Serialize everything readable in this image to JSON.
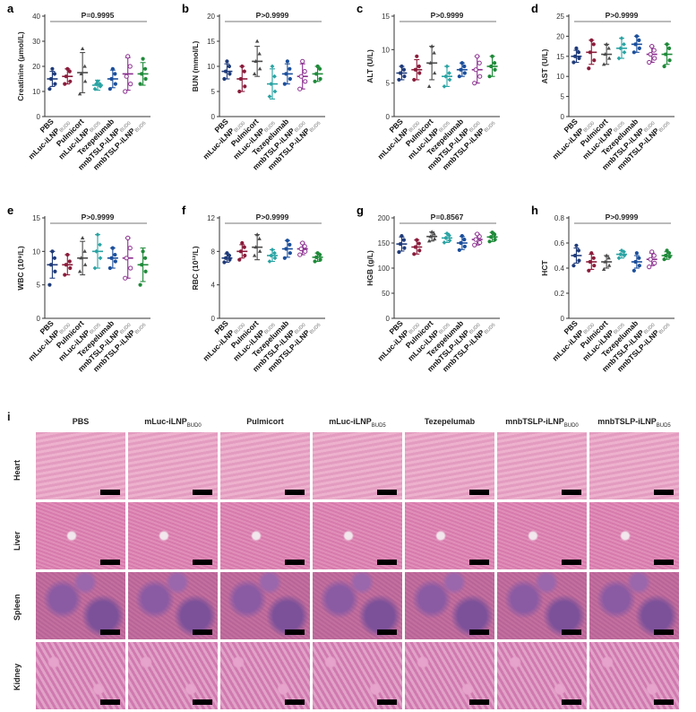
{
  "chart_data": [
    {
      "panel": "a",
      "type": "scatter",
      "ylabel": "Creatinine (μmol/L)",
      "ylim": [
        0,
        40
      ],
      "yticks": [
        0,
        10,
        20,
        30,
        40
      ],
      "pvalue": "P=0.9995",
      "categories": [
        "PBS",
        "mLuc-iLNP",
        "Pulmicort",
        "mLuc-iLNP",
        "Tezepelumab",
        "mnbTSLP-iLNP",
        "mnbTSLP-iLNP"
      ],
      "subscripts": [
        "",
        "BUD0",
        "",
        "BUD5",
        "",
        "BUD0",
        "BUD5"
      ],
      "means": [
        15,
        16,
        17.5,
        12.5,
        15,
        17,
        17
      ],
      "sd": [
        3,
        3,
        8,
        2,
        3.5,
        6.5,
        4.5
      ],
      "points": [
        [
          11,
          13,
          15,
          17,
          19
        ],
        [
          13,
          14,
          16,
          18,
          19
        ],
        [
          9,
          14,
          17,
          20,
          27
        ],
        [
          11,
          12,
          13,
          13,
          14
        ],
        [
          11,
          13,
          15,
          17,
          19
        ],
        [
          10,
          13,
          16,
          20,
          24
        ],
        [
          13,
          15,
          17,
          19,
          23
        ]
      ]
    },
    {
      "panel": "b",
      "type": "scatter",
      "ylabel": "BUN (mmol/L)",
      "ylim": [
        0,
        20
      ],
      "yticks": [
        0,
        5,
        10,
        15,
        20
      ],
      "pvalue": "P>0.9999",
      "categories": [
        "PBS",
        "mLuc-iLNP",
        "Pulmicort",
        "mLuc-iLNP",
        "Tezepelumab",
        "mnbTSLP-iLNP",
        "mnbTSLP-iLNP"
      ],
      "subscripts": [
        "",
        "BUD0",
        "",
        "BUD5",
        "",
        "BUD0",
        "BUD5"
      ],
      "means": [
        9,
        7.5,
        11,
        6.5,
        8.5,
        8,
        8.5
      ],
      "sd": [
        1.5,
        2.5,
        3,
        3,
        2,
        2.5,
        1.5
      ],
      "points": [
        [
          7.5,
          8.5,
          9,
          10,
          11
        ],
        [
          5,
          6,
          7.5,
          9,
          10
        ],
        [
          8.5,
          9.5,
          11,
          12.5,
          15
        ],
        [
          4,
          5,
          6.5,
          8,
          10
        ],
        [
          6.5,
          7.5,
          8.5,
          9.5,
          11
        ],
        [
          5.5,
          7,
          8,
          9,
          11
        ],
        [
          7,
          7.5,
          8.5,
          9.5,
          10
        ]
      ]
    },
    {
      "panel": "c",
      "type": "scatter",
      "ylabel": "ALT (U/L)",
      "ylim": [
        0,
        15
      ],
      "yticks": [
        0,
        5,
        10,
        15
      ],
      "pvalue": "P>0.9999",
      "categories": [
        "PBS",
        "mLuc-iLNP",
        "Pulmicort",
        "mLuc-iLNP",
        "Tezepelumab",
        "mnbTSLP-iLNP",
        "mnbTSLP-iLNP"
      ],
      "subscripts": [
        "",
        "BUD0",
        "",
        "BUD5",
        "",
        "BUD0",
        "BUD5"
      ],
      "means": [
        6.5,
        7,
        8,
        6,
        7,
        7,
        7.5
      ],
      "sd": [
        1,
        1.5,
        2.5,
        1.5,
        1,
        2,
        1.5
      ],
      "points": [
        [
          5.5,
          6,
          6.5,
          7,
          7.5
        ],
        [
          5.5,
          6.5,
          7,
          7.5,
          9
        ],
        [
          4.5,
          6.5,
          8,
          9.5,
          10.5
        ],
        [
          4.5,
          5.5,
          6,
          6.5,
          7.5
        ],
        [
          6,
          6.5,
          7,
          7.5,
          8
        ],
        [
          5,
          6,
          7,
          8,
          9
        ],
        [
          6,
          7,
          7.5,
          8,
          9
        ]
      ]
    },
    {
      "panel": "d",
      "type": "scatter",
      "ylabel": "AST (U/L)",
      "ylim": [
        0,
        25
      ],
      "yticks": [
        0,
        5,
        10,
        15,
        20,
        25
      ],
      "pvalue": "P>0.9999",
      "categories": [
        "PBS",
        "mLuc-iLNP",
        "Pulmicort",
        "mLuc-iLNP",
        "Tezepelumab",
        "mnbTSLP-iLNP",
        "mnbTSLP-iLNP"
      ],
      "subscripts": [
        "",
        "BUD0",
        "",
        "BUD5",
        "",
        "BUD0",
        "BUD5"
      ],
      "means": [
        15,
        16,
        15.5,
        17,
        18,
        15.5,
        15.5
      ],
      "sd": [
        1.5,
        3,
        2.5,
        2.5,
        2,
        2,
        2.5
      ],
      "points": [
        [
          13.5,
          14.5,
          15,
          16,
          17
        ],
        [
          12,
          14,
          16,
          18,
          19
        ],
        [
          13,
          14.5,
          15.5,
          17,
          18
        ],
        [
          14.5,
          16,
          17,
          18,
          19.5
        ],
        [
          16,
          17,
          18,
          19,
          20
        ],
        [
          13.5,
          14.5,
          15.5,
          16.5,
          17.5
        ],
        [
          12.5,
          14,
          15.5,
          17,
          18
        ]
      ]
    },
    {
      "panel": "e",
      "type": "scatter",
      "ylabel": "WBC (10⁹/L)",
      "ylim": [
        0,
        15
      ],
      "yticks": [
        0,
        5,
        10,
        15
      ],
      "pvalue": "P>0.9999",
      "categories": [
        "PBS",
        "mLuc-iLNP",
        "Pulmicort",
        "mLuc-iLNP",
        "Tezepelumab",
        "mnbTSLP-iLNP",
        "mnbTSLP-iLNP"
      ],
      "subscripts": [
        "",
        "BUD0",
        "",
        "BUD5",
        "",
        "BUD0",
        "BUD5"
      ],
      "means": [
        8,
        8,
        9,
        10,
        9,
        9,
        8
      ],
      "sd": [
        2,
        1.5,
        2.5,
        2.5,
        1.5,
        3,
        2.5
      ],
      "points": [
        [
          5,
          7,
          8,
          9,
          10
        ],
        [
          6.5,
          7.5,
          8,
          8.5,
          9.5
        ],
        [
          7,
          8,
          9,
          10,
          12
        ],
        [
          7.5,
          9,
          10,
          11,
          12.5
        ],
        [
          7.5,
          8.5,
          9,
          9.5,
          10.5
        ],
        [
          6,
          7.5,
          9,
          10.5,
          12
        ],
        [
          5,
          7,
          8,
          9,
          10
        ]
      ]
    },
    {
      "panel": "f",
      "type": "scatter",
      "ylabel": "RBC (10¹²/L)",
      "ylim": [
        0,
        12
      ],
      "yticks": [
        0,
        4,
        8,
        12
      ],
      "pvalue": "P>0.9999",
      "categories": [
        "PBS",
        "mLuc-iLNP",
        "Pulmicort",
        "mLuc-iLNP",
        "Tezepelumab",
        "mnbTSLP-iLNP",
        "mnbTSLP-iLNP"
      ],
      "subscripts": [
        "",
        "BUD0",
        "",
        "BUD5",
        "",
        "BUD0",
        "BUD5"
      ],
      "means": [
        7.2,
        8,
        8.5,
        7.5,
        8.3,
        8.3,
        7.3
      ],
      "sd": [
        0.5,
        0.8,
        1.5,
        0.7,
        1,
        0.7,
        0.5
      ],
      "points": [
        [
          6.7,
          7,
          7.2,
          7.5,
          7.8
        ],
        [
          7,
          7.5,
          8,
          8.5,
          9
        ],
        [
          7.5,
          8,
          8.5,
          9.5,
          10
        ],
        [
          6.8,
          7.2,
          7.5,
          7.8,
          8.2
        ],
        [
          7.2,
          7.8,
          8.3,
          8.8,
          9.3
        ],
        [
          7.6,
          8,
          8.3,
          8.6,
          9
        ],
        [
          6.8,
          7,
          7.3,
          7.6,
          7.8
        ]
      ]
    },
    {
      "panel": "g",
      "type": "scatter",
      "ylabel": "HGB (g/L)",
      "ylim": [
        0,
        200
      ],
      "yticks": [
        0,
        50,
        100,
        150,
        200
      ],
      "pvalue": "P=0.8567",
      "categories": [
        "PBS",
        "mLuc-iLNP",
        "Pulmicort",
        "mLuc-iLNP",
        "Tezepelumab",
        "mnbTSLP-iLNP",
        "mnbTSLP-iLNP"
      ],
      "subscripts": [
        "",
        "BUD0",
        "",
        "BUD5",
        "",
        "BUD0",
        "BUD5"
      ],
      "means": [
        148,
        142,
        163,
        160,
        150,
        157,
        162
      ],
      "sd": [
        14,
        14,
        9,
        9,
        13,
        11,
        9
      ],
      "points": [
        [
          132,
          140,
          148,
          156,
          164
        ],
        [
          128,
          135,
          142,
          149,
          156
        ],
        [
          154,
          158,
          163,
          168,
          172
        ],
        [
          151,
          155,
          160,
          165,
          169
        ],
        [
          136,
          143,
          150,
          157,
          164
        ],
        [
          146,
          151,
          157,
          163,
          168
        ],
        [
          153,
          157,
          162,
          167,
          171
        ]
      ]
    },
    {
      "panel": "h",
      "type": "scatter",
      "ylabel": "HCT",
      "ylim": [
        0,
        0.8
      ],
      "yticks": [
        0,
        0.2,
        0.4,
        0.6,
        0.8
      ],
      "pvalue": "P>0.9999",
      "categories": [
        "PBS",
        "mLuc-iLNP",
        "Pulmicort",
        "mLuc-iLNP",
        "Tezepelumab",
        "mnbTSLP-iLNP",
        "mnbTSLP-iLNP"
      ],
      "subscripts": [
        "",
        "BUD0",
        "",
        "BUD5",
        "",
        "BUD0",
        "BUD5"
      ],
      "means": [
        0.5,
        0.45,
        0.45,
        0.51,
        0.45,
        0.47,
        0.5
      ],
      "sd": [
        0.06,
        0.06,
        0.05,
        0.03,
        0.05,
        0.05,
        0.03
      ],
      "points": [
        [
          0.42,
          0.46,
          0.5,
          0.54,
          0.58
        ],
        [
          0.38,
          0.42,
          0.45,
          0.48,
          0.52
        ],
        [
          0.39,
          0.42,
          0.45,
          0.48,
          0.5
        ],
        [
          0.48,
          0.5,
          0.51,
          0.53,
          0.54
        ],
        [
          0.38,
          0.42,
          0.45,
          0.48,
          0.52
        ],
        [
          0.41,
          0.44,
          0.47,
          0.5,
          0.53
        ],
        [
          0.47,
          0.49,
          0.5,
          0.52,
          0.54
        ]
      ]
    }
  ],
  "group_colors": [
    "#1f3b7a",
    "#8a1c3b",
    "#4a4a4a",
    "#2aa3a3",
    "#1b4f9c",
    "#8b2f8f",
    "#1f8a3a"
  ],
  "histology": {
    "panel_letter": "i",
    "columns": [
      {
        "label": "PBS",
        "sub": ""
      },
      {
        "label": "mLuc-iLNP",
        "sub": "BUD0"
      },
      {
        "label": "Pulmicort",
        "sub": ""
      },
      {
        "label": "mLuc-iLNP",
        "sub": "BUD5"
      },
      {
        "label": "Tezepelumab",
        "sub": ""
      },
      {
        "label": "mnbTSLP-iLNP",
        "sub": "BUD0"
      },
      {
        "label": "mnbTSLP-iLNP",
        "sub": "BUD5"
      }
    ],
    "rows": [
      "Heart",
      "Liver",
      "Spleen",
      "Kidney"
    ],
    "tissue_colors": {
      "Heart": "#e7a6c4",
      "Liver": "#d97fae",
      "Spleen": "#b7659a",
      "Kidney": "#d47fb4"
    }
  }
}
